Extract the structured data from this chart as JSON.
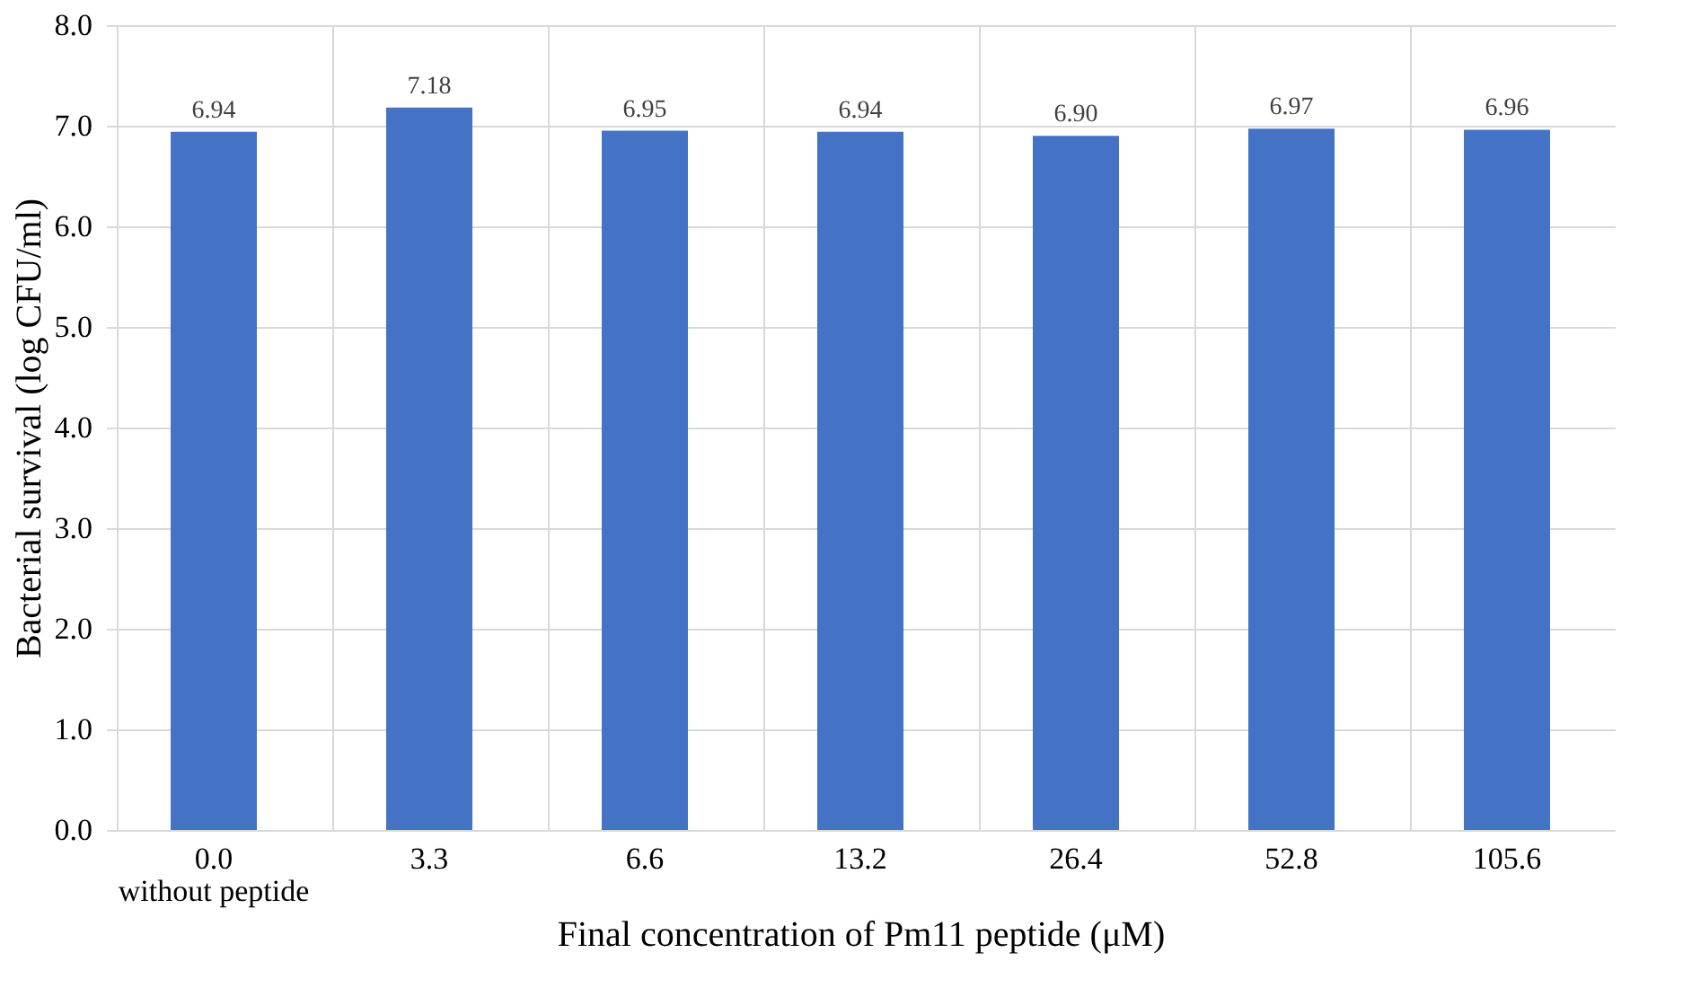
{
  "chart_data": {
    "type": "bar",
    "xlabel": "Final concentration of Pm11 peptide (μM)",
    "ylabel": "Bacterial survival (log CFU/ml)",
    "categories": [
      "0.0\nwithout peptide",
      "3.3",
      "6.6",
      "13.2",
      "26.4",
      "52.8",
      "105.6"
    ],
    "values": [
      6.94,
      7.18,
      6.95,
      6.94,
      6.9,
      6.97,
      6.96
    ],
    "value_labels": [
      "6.94",
      "7.18",
      "6.95",
      "6.94",
      "6.90",
      "6.97",
      "6.96"
    ],
    "color": "#4472c4",
    "ylim": [
      0,
      8
    ],
    "yticks": [
      {
        "value": 0,
        "label": "0.0"
      },
      {
        "value": 1,
        "label": "1.0"
      },
      {
        "value": 2,
        "label": "2.0"
      },
      {
        "value": 3,
        "label": "3.0"
      },
      {
        "value": 4,
        "label": "4.0"
      },
      {
        "value": 5,
        "label": "5.0"
      },
      {
        "value": 6,
        "label": "6.0"
      },
      {
        "value": 7,
        "label": "7.0"
      },
      {
        "value": 8,
        "label": "8.0"
      }
    ],
    "grid": true
  }
}
